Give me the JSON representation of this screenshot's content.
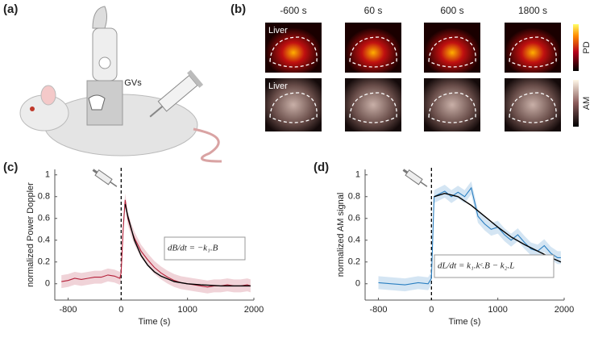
{
  "figure": {
    "panel_a": {
      "label": "(a)",
      "syringe_label": "GVs"
    },
    "panel_b": {
      "label": "(b)",
      "times": [
        "-600 s",
        "60 s",
        "600 s",
        "1800 s"
      ],
      "rows": [
        {
          "organ": "Liver",
          "colorbar": "PD"
        },
        {
          "organ": "Liver",
          "colorbar": "AM"
        }
      ]
    }
  },
  "chart_data": [
    {
      "type": "line",
      "panel_label": "(c)",
      "x_label": "Time (s)",
      "y_label": "normalized Power Doppler",
      "annotation": "dB/dt = −k₁.B",
      "xlim": [
        -1000,
        2000
      ],
      "xticks": [
        -800,
        0,
        1000,
        2000
      ],
      "ylim": [
        -0.15,
        1.05
      ],
      "yticks": [
        0,
        0.2,
        0.4,
        0.6,
        0.8,
        1
      ],
      "vline_x": 0,
      "series": [
        {
          "name": "Measured",
          "color": "#b5213a",
          "x": [
            -900,
            -800,
            -700,
            -600,
            -500,
            -400,
            -300,
            -200,
            -100,
            -20,
            0,
            30,
            60,
            100,
            150,
            200,
            300,
            400,
            500,
            600,
            700,
            800,
            900,
            1000,
            1100,
            1200,
            1300,
            1400,
            1500,
            1600,
            1700,
            1800,
            1900,
            1950
          ],
          "values": [
            0.02,
            0.03,
            0.05,
            0.04,
            0.05,
            0.06,
            0.06,
            0.08,
            0.07,
            0.05,
            0.1,
            0.5,
            0.77,
            0.6,
            0.5,
            0.42,
            0.3,
            0.22,
            0.15,
            0.1,
            0.06,
            0.03,
            0.01,
            0,
            -0.01,
            -0.02,
            -0.03,
            -0.02,
            -0.02,
            -0.01,
            -0.02,
            -0.02,
            -0.01,
            -0.02
          ]
        },
        {
          "name": "Fit",
          "color": "#000000",
          "x": [
            60,
            100,
            200,
            300,
            400,
            500,
            600,
            800,
            1000,
            1200,
            1500,
            1950
          ],
          "values": [
            0.73,
            0.62,
            0.4,
            0.26,
            0.17,
            0.11,
            0.07,
            0.02,
            0,
            -0.01,
            -0.02,
            -0.02
          ]
        }
      ]
    },
    {
      "type": "line",
      "panel_label": "(d)",
      "x_label": "Time (s)",
      "y_label": "normalized AM signal",
      "annotation": "dL/dt = k₁.kᶜ.B − k₂.L",
      "xlim": [
        -1000,
        2000
      ],
      "xticks": [
        -800,
        0,
        1000,
        2000
      ],
      "ylim": [
        -0.15,
        1.05
      ],
      "yticks": [
        0,
        0.2,
        0.4,
        0.6,
        0.8,
        1
      ],
      "vline_x": 0,
      "series": [
        {
          "name": "Measured",
          "color": "#2a7fc1",
          "x": [
            -800,
            -600,
            -400,
            -200,
            -50,
            0,
            40,
            100,
            200,
            300,
            400,
            500,
            600,
            650,
            700,
            800,
            900,
            1000,
            1100,
            1200,
            1300,
            1400,
            1500,
            1600,
            1700,
            1800,
            1900,
            1950
          ],
          "values": [
            0.01,
            0,
            -0.01,
            0.01,
            0,
            0.05,
            0.8,
            0.82,
            0.85,
            0.8,
            0.84,
            0.8,
            0.88,
            0.75,
            0.62,
            0.55,
            0.5,
            0.52,
            0.45,
            0.4,
            0.45,
            0.38,
            0.32,
            0.3,
            0.35,
            0.28,
            0.24,
            0.24
          ]
        },
        {
          "name": "Fit",
          "color": "#000000",
          "x": [
            40,
            200,
            400,
            600,
            800,
            1000,
            1200,
            1400,
            1600,
            1800,
            1950
          ],
          "values": [
            0.8,
            0.83,
            0.8,
            0.72,
            0.62,
            0.52,
            0.43,
            0.36,
            0.3,
            0.24,
            0.2
          ]
        }
      ]
    }
  ]
}
